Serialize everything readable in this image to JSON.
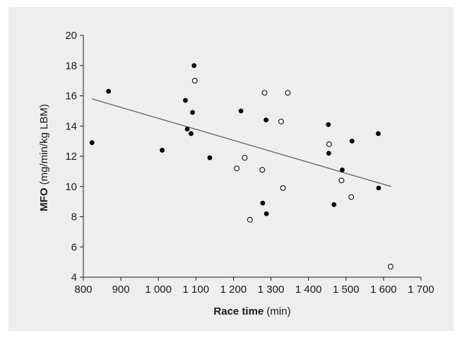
{
  "chart_data": {
    "type": "scatter",
    "xlabel": {
      "bold": "Race time",
      "rest": " (min)"
    },
    "ylabel": {
      "bold": "MFO",
      "rest": " (mg/min/kg LBM)"
    },
    "xlim": [
      800,
      1700
    ],
    "ylim": [
      4,
      20
    ],
    "x_ticks": [
      800,
      900,
      1000,
      1100,
      1200,
      1300,
      1400,
      1500,
      1600,
      1700
    ],
    "x_tick_labels": [
      "800",
      "900",
      "1 000",
      "1 100",
      "1 200",
      "1 300",
      "1 400",
      "1 500",
      "1 600",
      "1 700"
    ],
    "y_ticks": [
      4,
      6,
      8,
      10,
      12,
      14,
      16,
      18,
      20
    ],
    "y_tick_labels": [
      "4",
      "6",
      "8",
      "10",
      "12",
      "14",
      "16",
      "18",
      "20"
    ],
    "grid": false,
    "colors": {
      "panel": "#eeeeee",
      "filled": "#000000",
      "open_stroke": "#1a1a1a",
      "open_fill": "#ffffff",
      "trendline": "#555555",
      "axis": "#1a1a1a"
    },
    "series": [
      {
        "marker": "filled",
        "points": [
          [
            823,
            12.9
          ],
          [
            867,
            16.3
          ],
          [
            1010,
            12.4
          ],
          [
            1072,
            15.7
          ],
          [
            1077,
            13.8
          ],
          [
            1087,
            13.5
          ],
          [
            1091,
            14.9
          ],
          [
            1095,
            18.0
          ],
          [
            1137,
            11.9
          ],
          [
            1220,
            15.0
          ],
          [
            1278,
            8.9
          ],
          [
            1287,
            14.4
          ],
          [
            1288,
            8.2
          ],
          [
            1453,
            14.1
          ],
          [
            1454,
            12.2
          ],
          [
            1468,
            8.8
          ],
          [
            1490,
            11.1
          ],
          [
            1516,
            13.0
          ],
          [
            1586,
            13.5
          ],
          [
            1587,
            9.9
          ]
        ]
      },
      {
        "marker": "open",
        "points": [
          [
            1097,
            17.0
          ],
          [
            1209,
            11.2
          ],
          [
            1230,
            11.9
          ],
          [
            1244,
            7.8
          ],
          [
            1277,
            11.1
          ],
          [
            1283,
            16.2
          ],
          [
            1327,
            14.3
          ],
          [
            1332,
            9.9
          ],
          [
            1345,
            16.2
          ],
          [
            1455,
            12.8
          ],
          [
            1488,
            10.4
          ],
          [
            1514,
            9.3
          ],
          [
            1619,
            4.7
          ]
        ]
      }
    ],
    "trendline": {
      "x": [
        823,
        1620
      ],
      "y": [
        15.8,
        10.0
      ]
    }
  }
}
